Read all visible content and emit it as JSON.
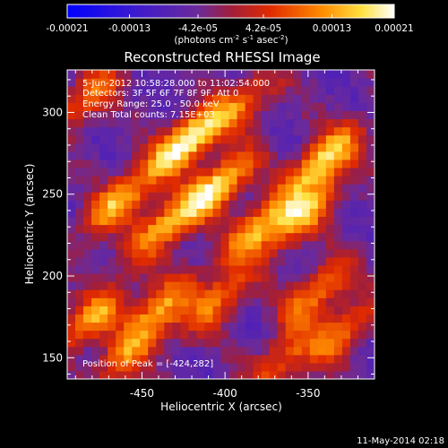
{
  "colorbar": {
    "min": -0.00021,
    "max": 0.00021,
    "tick_labels": [
      "-0.00021",
      "-0.00013",
      "-4.2e-05",
      "4.2e-05",
      "0.00013",
      "0.00021"
    ],
    "units_prefix": "(photons cm",
    "units_exp1": "-2",
    "units_mid": " s",
    "units_exp2": "-1",
    "units_suffix1": " asec",
    "units_exp3": "-2",
    "units_close": ")"
  },
  "chart_data": {
    "type": "heatmap",
    "title": "Reconstructed RHESSI Image",
    "xlabel": "Heliocentric X (arcsec)",
    "ylabel": "Heliocentric Y (arcsec)",
    "xlim": [
      -495,
      -310
    ],
    "ylim": [
      137,
      326
    ],
    "xticks": [
      -450,
      -400,
      -350
    ],
    "yticks": [
      150,
      200,
      250,
      300
    ],
    "colormap_colors": [
      "#0000ff",
      "#5a1eb4",
      "#6b2a9a",
      "#c81414",
      "#ff6400",
      "#ffdc28",
      "#ffffff"
    ],
    "hotspots": [
      {
        "x": -424,
        "y": 282,
        "value": 0.00021
      },
      {
        "x": -405,
        "y": 254,
        "value": 0.00019
      },
      {
        "x": -340,
        "y": 272,
        "value": 0.00018
      },
      {
        "x": -465,
        "y": 245,
        "value": 0.00014
      },
      {
        "x": -438,
        "y": 230,
        "value": 0.00012
      },
      {
        "x": -380,
        "y": 230,
        "value": 0.00014
      },
      {
        "x": -352,
        "y": 238,
        "value": 0.00013
      },
      {
        "x": -480,
        "y": 175,
        "value": 0.00013
      },
      {
        "x": -440,
        "y": 180,
        "value": 0.00012
      },
      {
        "x": -405,
        "y": 185,
        "value": 0.0001
      },
      {
        "x": -345,
        "y": 190,
        "value": 0.00011
      },
      {
        "x": -330,
        "y": 165,
        "value": 9e-05
      },
      {
        "x": -482,
        "y": 310,
        "value": 9e-05
      },
      {
        "x": -390,
        "y": 305,
        "value": 8e-05
      },
      {
        "x": -460,
        "y": 150,
        "value": 8e-05
      },
      {
        "x": -365,
        "y": 150,
        "value": 7e-05
      }
    ]
  },
  "annotations": {
    "time_range": "5-Jun-2012 10:58:28.000 to 11:02:54.000",
    "detectors": "Detectors: 3F 5F 6F 7F 8F 9F, Att 0",
    "energy": "Energy Range: 25.0 - 50.0 keV",
    "clean": "Clean     Total counts: 7.15E+03",
    "peak": "Position of Peak = [-424,282]"
  },
  "footer": {
    "date": "11-May-2014 02:18"
  }
}
